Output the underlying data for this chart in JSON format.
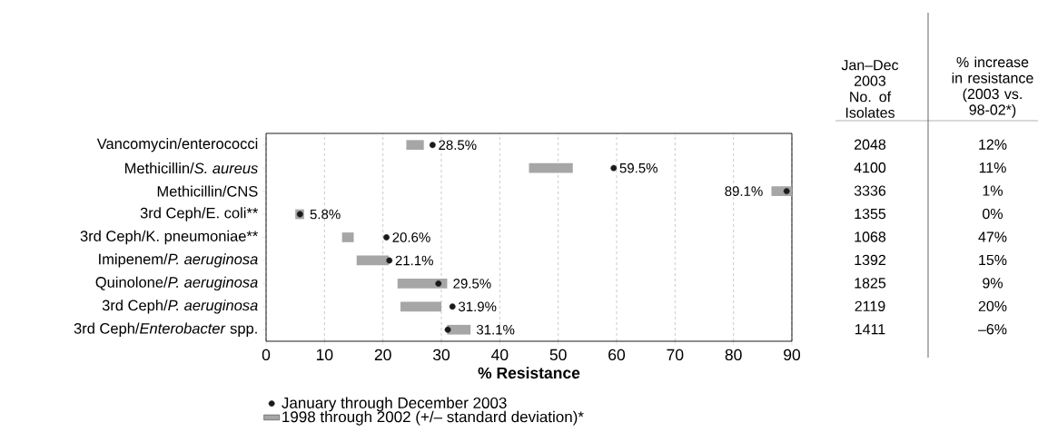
{
  "chart_data": [
    {
      "type": "bar",
      "orientation": "horizontal",
      "categories": [
        "Vancomycin/enterococci",
        "Methicillin/*S. aureus*",
        "Methicillin/CNS",
        "3rd Ceph/E. coli**",
        "3rd Ceph/K. pneumoniae**",
        "Imipenem/*P. aeruginosa*",
        "Quinolone/*P. aeruginosa*",
        "3rd Ceph/*P. aeruginosa*",
        "3rd Ceph/*Enterobacter* spp."
      ],
      "xlabel": "% Resistance",
      "xlim": [
        0,
        90
      ],
      "xticks": [
        0,
        10,
        20,
        30,
        40,
        50,
        60,
        70,
        80,
        90
      ],
      "grid": "x",
      "legend": "bottom",
      "series": [
        {
          "name": "January through December 2003",
          "type": "scatter",
          "marker": "circle",
          "color": "#1a1a1a",
          "values": [
            28.5,
            59.5,
            89.1,
            5.8,
            20.6,
            21.1,
            29.5,
            31.9,
            31.1
          ],
          "value_labels": [
            "28.5%",
            "59.5%",
            "89.1%",
            "5.8%",
            "20.6%",
            "21.1%",
            "29.5%",
            "31.9%",
            "31.1%"
          ]
        },
        {
          "name": "1998 through 2002 (+/– standard deviation)*",
          "type": "bar",
          "color": "#a6a6a6",
          "base": [
            24,
            45,
            86.5,
            5,
            13,
            15.5,
            22.5,
            23,
            31
          ],
          "values": [
            3,
            7.5,
            3.5,
            1.5,
            2,
            5.5,
            8.5,
            7,
            4
          ]
        }
      ]
    },
    {
      "type": "other",
      "categories": [
        "Jan–Dec 2003 No. of Isolates",
        "% increase in resistance (2003 vs. 98-02*)"
      ],
      "annotations": [
        "2048",
        "12%",
        "4100",
        "11%",
        "3336",
        "1%",
        "1355",
        "0%",
        "1068",
        "47%",
        "1392",
        "15%",
        "1825",
        "9%",
        "2119",
        "20%",
        "1411",
        "–6%"
      ]
    }
  ]
}
